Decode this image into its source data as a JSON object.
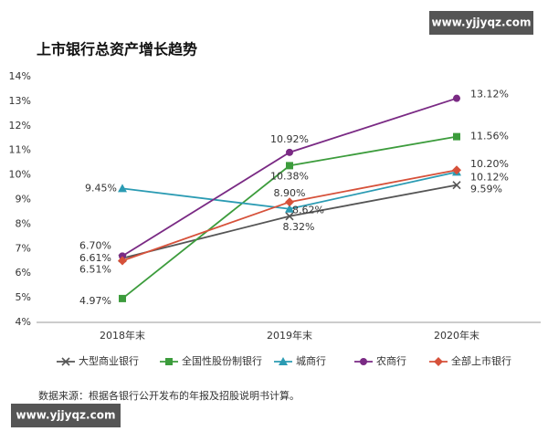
{
  "chart_data": {
    "type": "line",
    "title": "上市银行总资产增长趋势",
    "categories": [
      "2018年末",
      "2019年末",
      "2020年末"
    ],
    "ylim": [
      4,
      14
    ],
    "yticks": [
      {
        "value": 4,
        "label": "4%"
      },
      {
        "value": 5,
        "label": "5%"
      },
      {
        "value": 6,
        "label": "6%"
      },
      {
        "value": 7,
        "label": "7%"
      },
      {
        "value": 8,
        "label": "8%"
      },
      {
        "value": 9,
        "label": "9%"
      },
      {
        "value": 10,
        "label": "10%"
      },
      {
        "value": 11,
        "label": "11%"
      },
      {
        "value": 12,
        "label": "12%"
      },
      {
        "value": 13,
        "label": "13%"
      },
      {
        "value": 14,
        "label": "14%"
      }
    ],
    "grid": false,
    "series": [
      {
        "name": "大型商业银行",
        "color": "#555555",
        "marker": "x",
        "values": [
          6.61,
          8.32,
          9.59
        ],
        "value_labels": [
          "6.61%",
          "8.32%",
          "9.59%"
        ]
      },
      {
        "name": "全国性股份制银行",
        "color": "#3c9c3c",
        "marker": "square",
        "values": [
          4.97,
          10.38,
          11.56
        ],
        "value_labels": [
          "4.97%",
          "10.38%",
          "11.56%"
        ]
      },
      {
        "name": "城商行",
        "color": "#2b9bb3",
        "marker": "triangle",
        "values": [
          9.45,
          8.62,
          10.12
        ],
        "value_labels": [
          "9.45%",
          "8.62%",
          "10.12%"
        ]
      },
      {
        "name": "农商行",
        "color": "#7a2a84",
        "marker": "circle",
        "values": [
          6.7,
          10.92,
          13.12
        ],
        "value_labels": [
          "6.70%",
          "10.92%",
          "13.12%"
        ]
      },
      {
        "name": "全部上市银行",
        "color": "#d6513a",
        "marker": "diamond",
        "values": [
          6.51,
          8.9,
          10.2
        ],
        "value_labels": [
          "6.51%",
          "8.90%",
          "10.20%"
        ]
      }
    ],
    "note": "数据来源：根据各银行公开发布的年报及招股说明书计算。",
    "watermarks": [
      "www.yjjyqz.com",
      "www.yjjyqz.com"
    ]
  }
}
